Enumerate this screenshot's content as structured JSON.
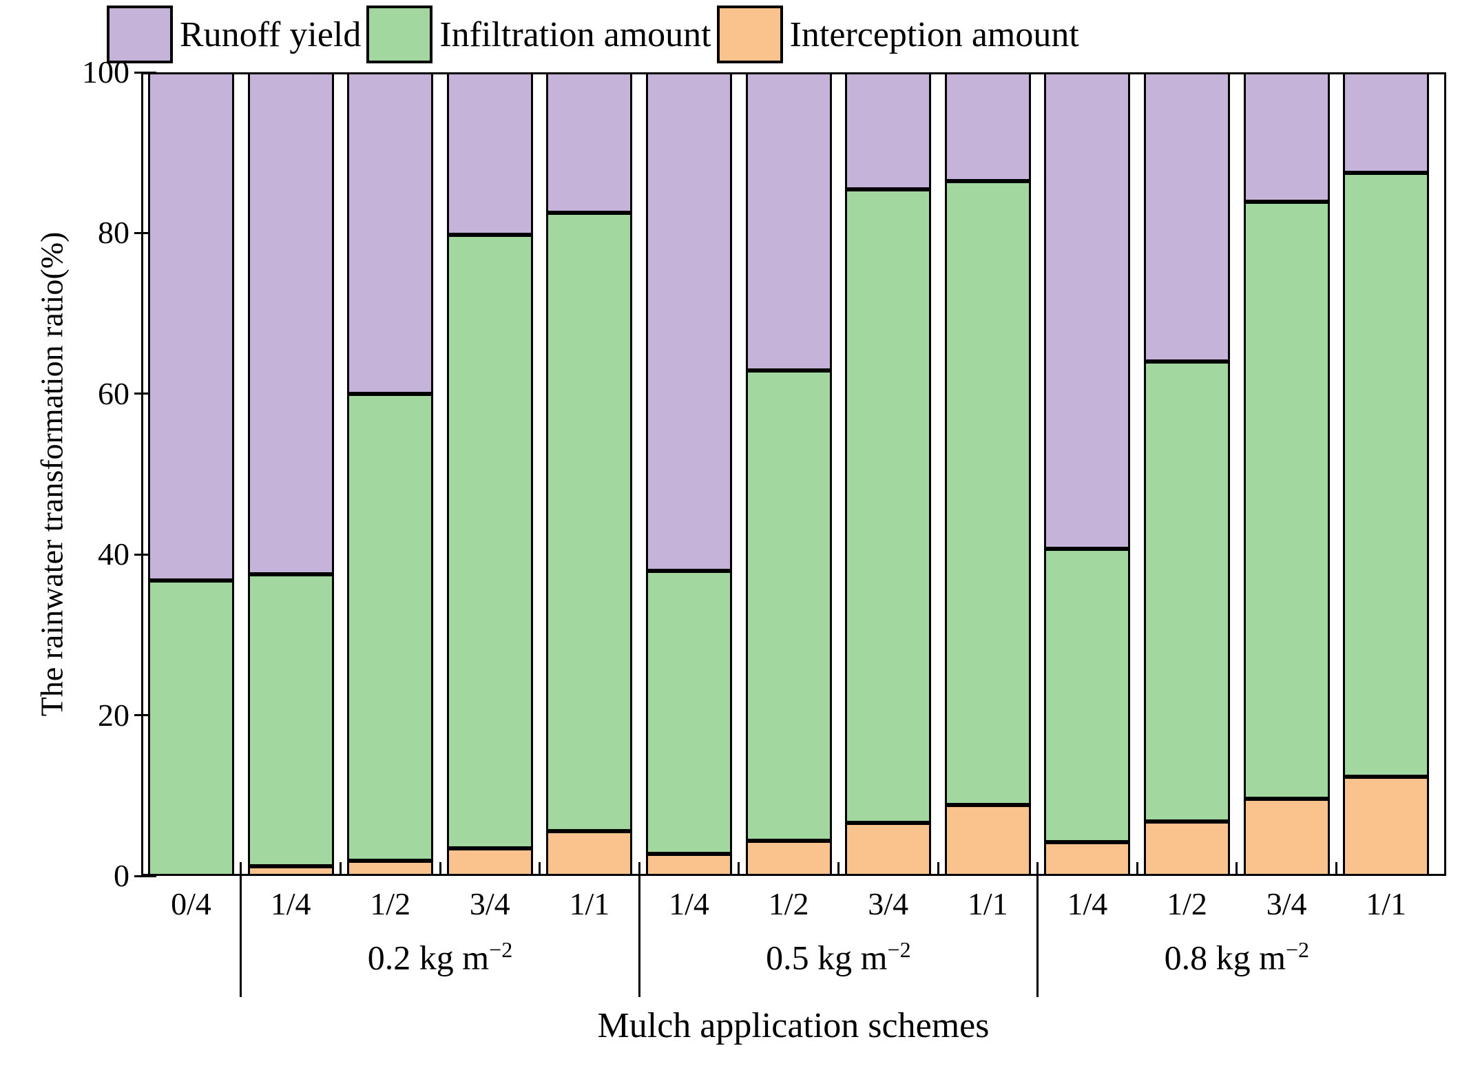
{
  "y_axis": {
    "label": "The rainwater transformation ratio(%)",
    "ticks": [
      0,
      20,
      40,
      60,
      80,
      100
    ],
    "min": 0,
    "max": 100
  },
  "x_axis": {
    "label": "Mulch application schemes"
  },
  "legend": [
    {
      "label": "Runoff yield",
      "color": "#c6b3d9"
    },
    {
      "label": "Infiltration amount",
      "color": "#a2d89f"
    },
    {
      "label": "Interception amount",
      "color": "#fac28c"
    }
  ],
  "colors": {
    "runoff": "#c6b3d9",
    "infiltration": "#a2d89f",
    "interception": "#fac28c",
    "axis": "#000000"
  },
  "bar_groups": [
    {
      "label_main": "0.2 kg m",
      "label_sup": "−2",
      "bars": [
        1,
        4
      ]
    },
    {
      "label_main": "0.5 kg m",
      "label_sup": "−2",
      "bars": [
        5,
        8
      ]
    },
    {
      "label_main": "0.8 kg m",
      "label_sup": "−2",
      "bars": [
        9,
        12
      ]
    }
  ],
  "chart_data": {
    "type": "bar",
    "stacked": true,
    "grid": false,
    "legend_position": "top",
    "title": "",
    "xlabel": "Mulch application schemes",
    "ylabel": "The rainwater transformation ratio(%)",
    "ylim": [
      0,
      100
    ],
    "categories": [
      "0/4",
      "1/4",
      "1/2",
      "3/4",
      "1/1",
      "1/4",
      "1/2",
      "3/4",
      "1/1",
      "1/4",
      "1/2",
      "3/4",
      "1/1"
    ],
    "category_groups": [
      "",
      "0.2 kg m-2",
      "0.2 kg m-2",
      "0.2 kg m-2",
      "0.2 kg m-2",
      "0.5 kg m-2",
      "0.5 kg m-2",
      "0.5 kg m-2",
      "0.5 kg m-2",
      "0.8 kg m-2",
      "0.8 kg m-2",
      "0.8 kg m-2",
      "0.8 kg m-2"
    ],
    "series": [
      {
        "name": "Interception amount",
        "color": "#fac28c",
        "values": [
          0,
          1.2,
          1.9,
          3.4,
          5.6,
          2.7,
          4.4,
          6.6,
          8.8,
          4.2,
          6.8,
          9.6,
          12.3
        ]
      },
      {
        "name": "Infiltration amount",
        "color": "#a2d89f",
        "values": [
          36.8,
          36.3,
          58.1,
          76.4,
          76.9,
          35.3,
          58.5,
          78.8,
          77.7,
          36.5,
          57.2,
          74.3,
          75.2
        ]
      },
      {
        "name": "Runoff yield",
        "color": "#c6b3d9",
        "values": [
          63.2,
          62.5,
          40.0,
          20.2,
          17.5,
          62.0,
          37.1,
          14.6,
          13.5,
          59.3,
          36.0,
          16.1,
          12.5
        ]
      }
    ]
  }
}
